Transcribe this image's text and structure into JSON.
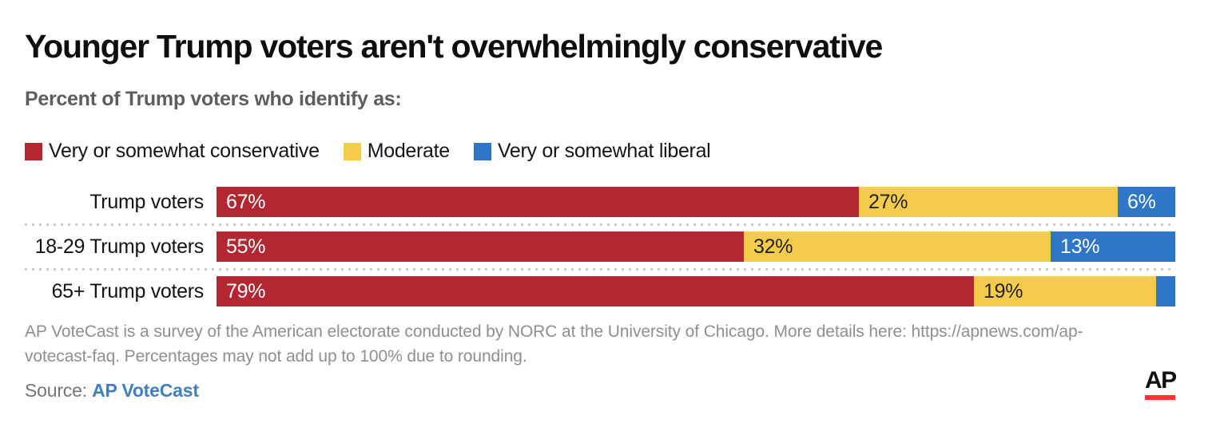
{
  "header": {
    "title": "Younger Trump voters aren't overwhelmingly conservative",
    "subtitle": "Percent of Trump voters who identify as:"
  },
  "colors": {
    "conservative_red": "#b22731",
    "moderate_yellow": "#f4cc49",
    "liberal_blue": "#3076c8",
    "divider_gray": "#cbcbcb",
    "link_blue": "#3d7fc1",
    "ap_logo_red": "#ff322e"
  },
  "chart_data": {
    "type": "bar",
    "orientation": "horizontal",
    "stacked": true,
    "grid": false,
    "legend_position": "top",
    "title": "Younger Trump voters aren't overwhelmingly conservative",
    "subtitle": "Percent of Trump voters who identify as:",
    "categories": [
      "Trump voters",
      "18-29 Trump voters",
      "65+ Trump voters"
    ],
    "series": [
      {
        "name": "Very or somewhat conservative",
        "color": "#b22731",
        "label_color": "#ffffff",
        "values": [
          67,
          55,
          79
        ]
      },
      {
        "name": "Moderate",
        "color": "#f4cc49",
        "label_color": "#222222",
        "values": [
          27,
          32,
          19
        ]
      },
      {
        "name": "Very or somewhat liberal",
        "color": "#3076c8",
        "label_color": "#ffffff",
        "values": [
          6,
          13,
          2
        ]
      }
    ],
    "value_labels": [
      [
        "67%",
        "27%",
        "6%"
      ],
      [
        "55%",
        "32%",
        "13%"
      ],
      [
        "79%",
        "19%",
        ""
      ]
    ],
    "xlim": [
      0,
      100
    ]
  },
  "footer": {
    "note_lines": [
      "AP VoteCast is a survey of the American electorate conducted by NORC at the University of Chicago. More details here: https://apnews.com/ap-",
      "votecast-faq. Percentages may not add up to 100% due to rounding."
    ],
    "source_label": "Source:",
    "source_link_text": "AP VoteCast",
    "ap_logo_text": "AP"
  }
}
